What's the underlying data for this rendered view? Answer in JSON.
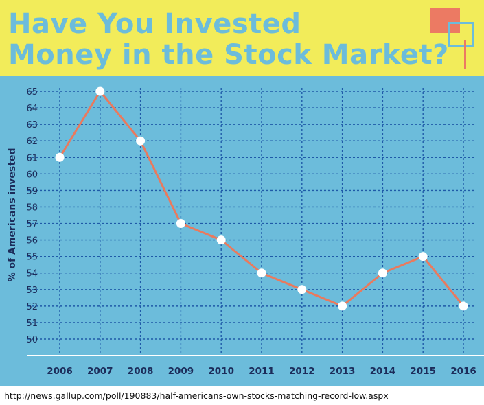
{
  "header": {
    "title_line1": "Have You Invested",
    "title_line2": "Money in the Stock Market?"
  },
  "colors": {
    "header_background": "#f2ec5a",
    "title": "#6cbcdb",
    "plot_background": "#6cbcdb",
    "grid": "#1f5aa8",
    "axis_text": "#1c2c5a",
    "line": "#e97a5e",
    "marker": "#ffffff",
    "deco_square": "#ec7a63"
  },
  "chart_data": {
    "type": "line",
    "title": "Have You Invested Money in the Stock Market?",
    "xlabel": "",
    "ylabel": "% of Americans invested",
    "x": [
      "2006",
      "2007",
      "2008",
      "2009",
      "2010",
      "2011",
      "2012",
      "2013",
      "2014",
      "2015",
      "2016"
    ],
    "values": [
      61,
      65,
      62,
      57,
      56,
      54,
      53,
      52,
      54,
      55,
      52
    ],
    "y_ticks": [
      "50",
      "51",
      "52",
      "53",
      "54",
      "55",
      "56",
      "57",
      "58",
      "59",
      "60",
      "61",
      "62",
      "63",
      "64",
      "65"
    ],
    "ylim": [
      50,
      65
    ],
    "grid": true,
    "markers": "circle"
  },
  "source": "http://news.gallup.com/poll/190883/half-americans-own-stocks-matching-record-low.aspx"
}
